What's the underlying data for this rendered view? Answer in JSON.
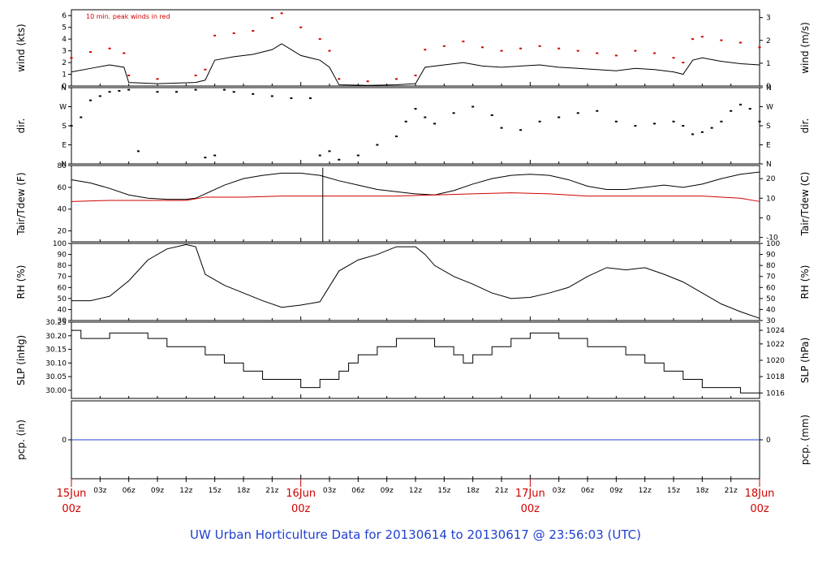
{
  "chart_data": {
    "type": "line",
    "title": "UW Urban Horticulture Data for 20130614  to  20130617 @ 23:56:03  (UTC)",
    "legend_note": "10 min. peak winds in red",
    "time_axis": {
      "range_hours": [
        0,
        72
      ],
      "major_ticks": [
        {
          "hour": 0,
          "line1": "15Jun",
          "line2": "00z"
        },
        {
          "hour": 24,
          "line1": "16Jun",
          "line2": "00z"
        },
        {
          "hour": 48,
          "line1": "17Jun",
          "line2": "00z"
        },
        {
          "hour": 72,
          "line1": "18Jun",
          "line2": "00z"
        }
      ],
      "minor_ticks": [
        {
          "hour": 3,
          "label": "03z"
        },
        {
          "hour": 6,
          "label": "06z"
        },
        {
          "hour": 9,
          "label": "09z"
        },
        {
          "hour": 12,
          "label": "12z"
        },
        {
          "hour": 15,
          "label": "15z"
        },
        {
          "hour": 18,
          "label": "18z"
        },
        {
          "hour": 21,
          "label": "21z"
        },
        {
          "hour": 27,
          "label": "03z"
        },
        {
          "hour": 30,
          "label": "06z"
        },
        {
          "hour": 33,
          "label": "09z"
        },
        {
          "hour": 36,
          "label": "12z"
        },
        {
          "hour": 39,
          "label": "15z"
        },
        {
          "hour": 42,
          "label": "18z"
        },
        {
          "hour": 45,
          "label": "21z"
        },
        {
          "hour": 51,
          "label": "03z"
        },
        {
          "hour": 54,
          "label": "06z"
        },
        {
          "hour": 57,
          "label": "09z"
        },
        {
          "hour": 60,
          "label": "12z"
        },
        {
          "hour": 63,
          "label": "15z"
        },
        {
          "hour": 66,
          "label": "18z"
        },
        {
          "hour": 69,
          "label": "21z"
        }
      ]
    },
    "panels": [
      {
        "id": "wind",
        "ylabel_left": "wind (kts)",
        "ylabel_right": "wind (m/s)",
        "ylim": [
          0,
          6.5
        ],
        "left_ticks": [
          0,
          1,
          2,
          3,
          4,
          5,
          6
        ],
        "right_ticks": [
          {
            "value": 0,
            "label": "0"
          },
          {
            "value": 1,
            "label": "1"
          },
          {
            "value": 2,
            "label": "2"
          },
          {
            "value": 3,
            "label": "3"
          }
        ],
        "right_scale": 1.944,
        "series": [
          {
            "color": "#000000",
            "style": "line",
            "hours": [
              0,
              2,
              4,
              5.5,
              6,
              9,
              13,
              14,
              15,
              17,
              19,
              21,
              22,
              24,
              26,
              27,
              28,
              31,
              34,
              36,
              37,
              39,
              41,
              43,
              45,
              47,
              49,
              51,
              53,
              55,
              57,
              59,
              61,
              63,
              64,
              65,
              66,
              68,
              70,
              72
            ],
            "values": [
              1.2,
              1.5,
              1.8,
              1.6,
              0.3,
              0.2,
              0.3,
              0.5,
              2.2,
              2.5,
              2.7,
              3.1,
              3.6,
              2.6,
              2.2,
              1.6,
              0.1,
              0.05,
              0.1,
              0.2,
              1.6,
              1.8,
              2.0,
              1.7,
              1.6,
              1.7,
              1.8,
              1.6,
              1.5,
              1.4,
              1.3,
              1.5,
              1.4,
              1.2,
              1.0,
              2.2,
              2.4,
              2.1,
              1.9,
              1.8
            ]
          },
          {
            "color": "#d00000",
            "style": "dots",
            "hours": [
              0,
              2,
              4,
              5.5,
              6,
              9,
              13,
              14,
              15,
              17,
              19,
              21,
              22,
              24,
              26,
              27,
              28,
              31,
              34,
              36,
              37,
              39,
              41,
              43,
              45,
              47,
              49,
              51,
              53,
              55,
              57,
              59,
              61,
              63,
              64,
              65,
              66,
              68,
              70,
              72
            ],
            "values": [
              2.4,
              2.9,
              3.2,
              2.8,
              0.9,
              0.6,
              0.9,
              1.4,
              4.3,
              4.5,
              4.7,
              5.8,
              6.2,
              5.0,
              4.0,
              3.0,
              0.6,
              0.4,
              0.6,
              0.9,
              3.1,
              3.4,
              3.8,
              3.3,
              3.0,
              3.2,
              3.4,
              3.2,
              3.0,
              2.8,
              2.6,
              3.0,
              2.8,
              2.4,
              2.0,
              4.0,
              4.2,
              3.9,
              3.7,
              3.3
            ]
          }
        ]
      },
      {
        "id": "dir",
        "ylabel_left": "dir.",
        "ylabel_right": "dir.",
        "ylim": [
          0,
          360
        ],
        "left_ticks_labeled": [
          {
            "value": 0,
            "label": "N"
          },
          {
            "value": 90,
            "label": "E"
          },
          {
            "value": 180,
            "label": "S"
          },
          {
            "value": 270,
            "label": "W"
          },
          {
            "value": 360,
            "label": "N"
          }
        ],
        "right_ticks_labeled": [
          {
            "value": 0,
            "label": "N"
          },
          {
            "value": 90,
            "label": "E"
          },
          {
            "value": 180,
            "label": "S"
          },
          {
            "value": 270,
            "label": "W"
          },
          {
            "value": 360,
            "label": "N"
          }
        ],
        "series": [
          {
            "color": "#000000",
            "style": "dots",
            "hours": [
              0,
              1,
              2,
              3,
              4,
              5,
              6,
              7,
              9,
              11,
              13,
              14,
              15,
              16,
              17,
              19,
              21,
              23,
              25,
              26,
              27,
              28,
              30,
              32,
              34,
              35,
              36,
              37,
              38,
              40,
              42,
              44,
              45,
              47,
              49,
              51,
              53,
              55,
              57,
              59,
              61,
              63,
              64,
              65,
              66,
              67,
              68,
              69,
              70,
              71,
              72
            ],
            "values": [
              180,
              220,
              300,
              320,
              340,
              345,
              350,
              60,
              340,
              340,
              350,
              30,
              40,
              350,
              340,
              330,
              320,
              310,
              310,
              40,
              60,
              20,
              40,
              90,
              130,
              200,
              260,
              220,
              190,
              240,
              270,
              230,
              170,
              160,
              200,
              220,
              240,
              250,
              200,
              180,
              190,
              200,
              180,
              140,
              150,
              170,
              200,
              250,
              280,
              260,
              200
            ]
          }
        ]
      },
      {
        "id": "temp",
        "ylabel_left": "Tair/Tdew (F)",
        "ylabel_right": "Tair/Tdew (C)",
        "ylim": [
          10,
          80
        ],
        "left_ticks": [
          20,
          40,
          60,
          80
        ],
        "right_ticks": [
          {
            "value": 14,
            "label": "-10"
          },
          {
            "value": 32,
            "label": "0"
          },
          {
            "value": 50,
            "label": "10"
          },
          {
            "value": 68,
            "label": "20"
          }
        ],
        "series": [
          {
            "color": "#000000",
            "style": "line",
            "hours": [
              0,
              2,
              4,
              6,
              8,
              10,
              12,
              13,
              14,
              16,
              18,
              20,
              22,
              24,
              26,
              28,
              30,
              32,
              34,
              36,
              38,
              40,
              42,
              44,
              46,
              48,
              50,
              52,
              54,
              56,
              58,
              60,
              62,
              64,
              66,
              68,
              70,
              72
            ],
            "values": [
              67,
              64,
              59,
              53,
              50,
              49,
              49,
              50,
              54,
              62,
              68,
              71,
              73,
              73,
              71,
              66,
              62,
              58,
              56,
              54,
              53,
              57,
              63,
              68,
              71,
              72,
              71,
              67,
              61,
              58,
              58,
              60,
              62,
              60,
              63,
              68,
              72,
              74
            ]
          },
          {
            "color": "#d00000",
            "style": "line",
            "hours": [
              0,
              4,
              8,
              12,
              14,
              18,
              22,
              26,
              30,
              34,
              38,
              42,
              46,
              50,
              54,
              58,
              62,
              66,
              70,
              72
            ],
            "values": [
              47,
              48,
              48,
              48,
              51,
              51,
              52,
              52,
              52,
              52,
              53,
              54,
              55,
              54,
              52,
              52,
              52,
              52,
              50,
              47
            ]
          }
        ],
        "spike_hour": 26.3
      },
      {
        "id": "rh",
        "ylabel_left": "RH (%)",
        "ylabel_right": "RH (%)",
        "ylim": [
          30,
          100
        ],
        "left_ticks": [
          30,
          40,
          50,
          60,
          70,
          80,
          90,
          100
        ],
        "right_ticks": [
          {
            "value": 30,
            "label": "30"
          },
          {
            "value": 40,
            "label": "40"
          },
          {
            "value": 50,
            "label": "50"
          },
          {
            "value": 60,
            "label": "60"
          },
          {
            "value": 70,
            "label": "70"
          },
          {
            "value": 80,
            "label": "80"
          },
          {
            "value": 90,
            "label": "90"
          },
          {
            "value": 100,
            "label": "100"
          }
        ],
        "series": [
          {
            "color": "#000000",
            "style": "line",
            "hours": [
              0,
              2,
              4,
              6,
              8,
              10,
              12,
              13,
              14,
              16,
              18,
              20,
              22,
              24,
              26,
              28,
              30,
              32,
              34,
              36,
              37,
              38,
              40,
              42,
              44,
              46,
              48,
              50,
              52,
              54,
              56,
              58,
              60,
              62,
              64,
              66,
              68,
              70,
              72
            ],
            "values": [
              48,
              48,
              52,
              66,
              85,
              95,
              99,
              97,
              72,
              62,
              55,
              48,
              42,
              44,
              47,
              75,
              85,
              90,
              97,
              97,
              90,
              80,
              70,
              63,
              55,
              50,
              51,
              55,
              60,
              70,
              78,
              76,
              78,
              72,
              65,
              55,
              45,
              38,
              32
            ]
          }
        ]
      },
      {
        "id": "slp",
        "ylabel_left": "SLP (inHg)",
        "ylabel_right": "SLP (hPa)",
        "ylim": [
          29.97,
          30.25
        ],
        "left_ticks": [
          30.0,
          30.05,
          30.1,
          30.15,
          30.2,
          30.25
        ],
        "right_ticks": [
          {
            "value": 29.99,
            "label": "1016"
          },
          {
            "value": 30.05,
            "label": "1018"
          },
          {
            "value": 30.11,
            "label": "1020"
          },
          {
            "value": 30.17,
            "label": "1022"
          },
          {
            "value": 30.22,
            "label": "1024"
          }
        ],
        "series": [
          {
            "color": "#000000",
            "style": "step",
            "hours": [
              0,
              1,
              4,
              8,
              10,
              12,
              14,
              16,
              18,
              20,
              24,
              26,
              28,
              29,
              30,
              32,
              34,
              36,
              38,
              40,
              41,
              42,
              44,
              46,
              48,
              50,
              51,
              52,
              53,
              54,
              56,
              58,
              60,
              62,
              64,
              66,
              68,
              70,
              71,
              72
            ],
            "values": [
              30.22,
              30.19,
              30.21,
              30.19,
              30.16,
              30.16,
              30.13,
              30.1,
              30.07,
              30.04,
              30.01,
              30.04,
              30.07,
              30.1,
              30.13,
              30.16,
              30.19,
              30.19,
              30.16,
              30.13,
              30.1,
              30.13,
              30.16,
              30.19,
              30.21,
              30.21,
              30.19,
              30.19,
              30.19,
              30.16,
              30.16,
              30.13,
              30.1,
              30.07,
              30.04,
              30.01,
              30.01,
              29.99,
              29.99,
              29.99
            ]
          }
        ]
      },
      {
        "id": "pcp",
        "ylabel_left": "pcp. (in)",
        "ylabel_right": "pcp. (mm)",
        "ylim": [
          -1,
          1
        ],
        "left_ticks": [
          0
        ],
        "right_ticks": [
          {
            "value": 0,
            "label": "0"
          }
        ],
        "series": [
          {
            "color": "#2040d0",
            "style": "line",
            "hours": [
              0,
              72
            ],
            "values": [
              0,
              0
            ]
          }
        ]
      }
    ]
  }
}
